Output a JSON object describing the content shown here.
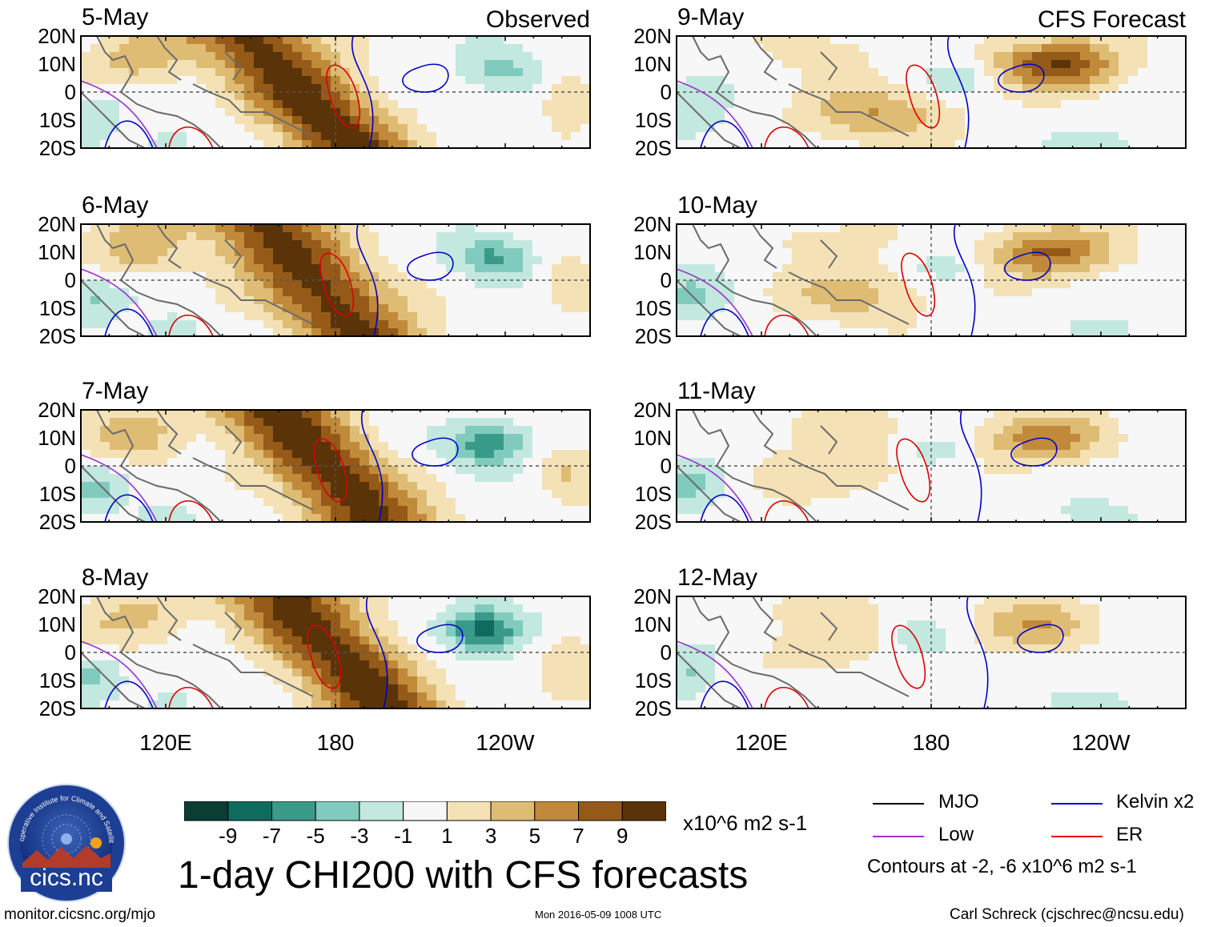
{
  "chart_data": {
    "type": "heatmap",
    "title": "1-day CHI200 with CFS forecasts",
    "units": "x10^6 m2 s-1",
    "columns": [
      {
        "title": "Observed",
        "panels": [
          "5-May",
          "6-May",
          "7-May",
          "8-May"
        ]
      },
      {
        "title": "CFS Forecast",
        "panels": [
          "9-May",
          "10-May",
          "11-May",
          "12-May"
        ]
      }
    ],
    "lat_ticks": [
      "20N",
      "10N",
      "0",
      "10S",
      "20S"
    ],
    "lat_range": [
      -20,
      20
    ],
    "lon_ticks": [
      "120E",
      "180",
      "120W"
    ],
    "lon_range": [
      90,
      270
    ],
    "colorbar": {
      "ticks": [
        "-9",
        "-7",
        "-5",
        "-3",
        "-1",
        "1",
        "3",
        "5",
        "7",
        "9"
      ],
      "colors": [
        "#0b3d34",
        "#0f6b5d",
        "#3a9a8a",
        "#80cbbd",
        "#c3e8e0",
        "#f7f7f7",
        "#f4e2b6",
        "#dfbc74",
        "#c08a3a",
        "#955a18",
        "#5a3309"
      ]
    },
    "legend": {
      "items": [
        {
          "label": "MJO",
          "color": "#000000"
        },
        {
          "label": "Kelvin x2",
          "color": "#0000cc"
        },
        {
          "label": "Low",
          "color": "#9933cc"
        },
        {
          "label": "ER",
          "color": "#dd0000"
        }
      ],
      "contours_note": "Contours at -2, -6 x10^6 m2 s-1"
    }
  },
  "logo": {
    "text": "cics.nc",
    "ring_text": "Cooperative Institute for Climate and Satellites"
  },
  "footer": {
    "url": "monitor.cicsnc.org/mjo",
    "timestamp": "Mon 2016-05-09 1008 UTC",
    "credit": "Carl Schreck (cjschrec@ncsu.edu)"
  }
}
